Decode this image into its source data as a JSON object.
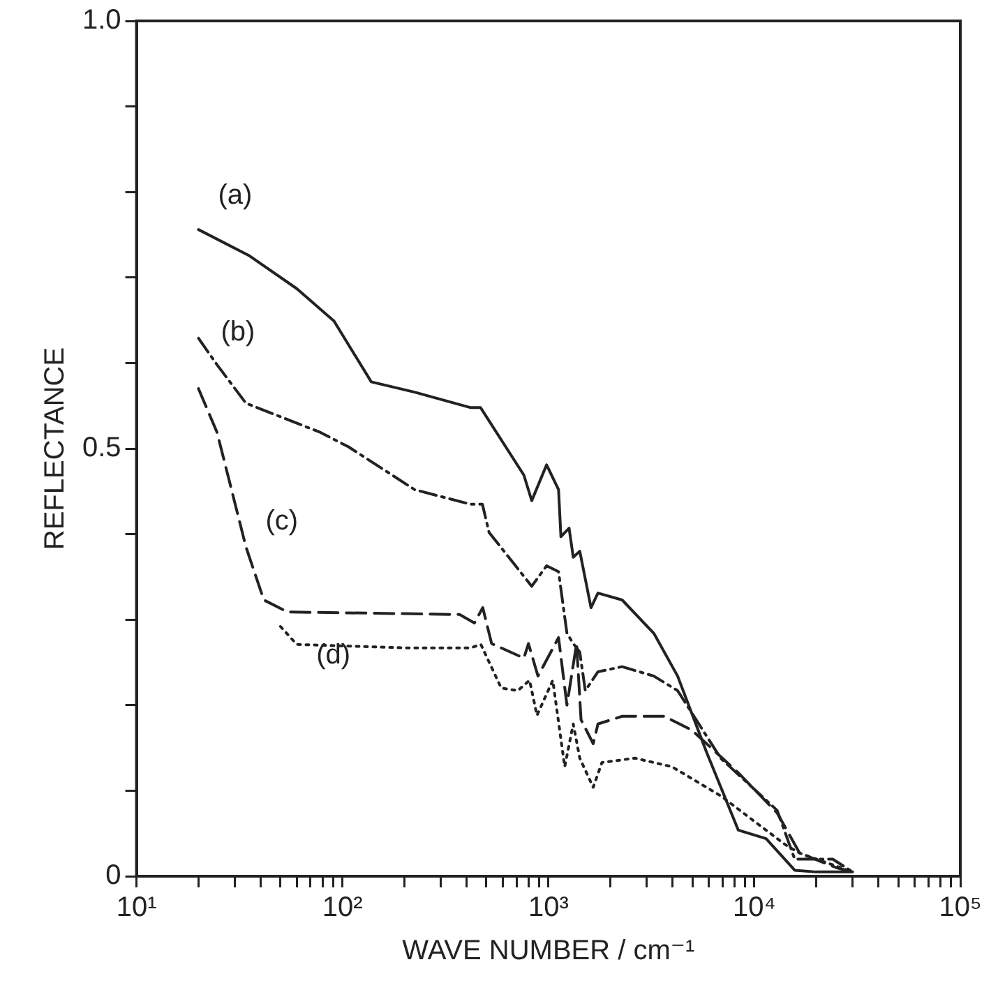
{
  "chart_data": {
    "type": "line",
    "xlabel": "WAVE NUMBER / cm⁻¹",
    "ylabel": "REFLECTANCE",
    "log": "x",
    "grid": false,
    "legend": false,
    "marker": "none",
    "xlim": [
      10,
      100000
    ],
    "ylim": [
      0,
      1
    ],
    "xticks": [
      {
        "value": 10,
        "label": "10¹"
      },
      {
        "value": 20,
        "label": null
      },
      {
        "value": 30,
        "label": null
      },
      {
        "value": 40,
        "label": null
      },
      {
        "value": 50,
        "label": null
      },
      {
        "value": 60,
        "label": null
      },
      {
        "value": 70,
        "label": null
      },
      {
        "value": 80,
        "label": null
      },
      {
        "value": 90,
        "label": null
      },
      {
        "value": 100,
        "label": "10²"
      },
      {
        "value": 200,
        "label": null
      },
      {
        "value": 300,
        "label": null
      },
      {
        "value": 400,
        "label": null
      },
      {
        "value": 500,
        "label": null
      },
      {
        "value": 600,
        "label": null
      },
      {
        "value": 700,
        "label": null
      },
      {
        "value": 800,
        "label": null
      },
      {
        "value": 900,
        "label": null
      },
      {
        "value": 1000,
        "label": "10³"
      },
      {
        "value": 2000,
        "label": null
      },
      {
        "value": 3000,
        "label": null
      },
      {
        "value": 4000,
        "label": null
      },
      {
        "value": 5000,
        "label": null
      },
      {
        "value": 6000,
        "label": null
      },
      {
        "value": 7000,
        "label": null
      },
      {
        "value": 8000,
        "label": null
      },
      {
        "value": 9000,
        "label": null
      },
      {
        "value": 10000,
        "label": "10⁴"
      },
      {
        "value": 20000,
        "label": null
      },
      {
        "value": 30000,
        "label": null
      },
      {
        "value": 40000,
        "label": null
      },
      {
        "value": 50000,
        "label": null
      },
      {
        "value": 60000,
        "label": null
      },
      {
        "value": 70000,
        "label": null
      },
      {
        "value": 80000,
        "label": null
      },
      {
        "value": 90000,
        "label": null
      },
      {
        "value": 100000,
        "label": "10⁵"
      }
    ],
    "yticks": [
      0,
      {
        "value": 0.1,
        "label": null
      },
      {
        "value": 0.2,
        "label": null
      },
      {
        "value": 0.3,
        "label": null
      },
      {
        "value": 0.4,
        "label": null
      },
      0.5,
      {
        "value": 0.6,
        "label": null
      },
      {
        "value": 0.7,
        "label": null
      },
      {
        "value": 0.8,
        "label": null
      },
      {
        "value": 0.9,
        "label": null
      },
      {
        "value": 1,
        "label": "1.0"
      }
    ],
    "series": [
      {
        "name": "(a)",
        "color": "#222222",
        "line_style": "solid",
        "x": [
          20,
          35,
          60,
          91,
          138,
          224,
          417,
          468,
          760,
          830,
          980,
          1120,
          1150,
          1260,
          1320,
          1420,
          1610,
          1740,
          2280,
          3250,
          4240,
          5860,
          8350,
          11400,
          15700,
          20000,
          30000
        ],
        "values": [
          0.756,
          0.726,
          0.687,
          0.649,
          0.578,
          0.566,
          0.548,
          0.548,
          0.469,
          0.439,
          0.481,
          0.452,
          0.397,
          0.407,
          0.373,
          0.38,
          0.314,
          0.331,
          0.323,
          0.284,
          0.234,
          0.145,
          0.054,
          0.044,
          0.007,
          0.005,
          0.005
        ]
      },
      {
        "name": "(b)",
        "color": "#222222",
        "line_style": "dashdot",
        "x": [
          20,
          24.6,
          34,
          78,
          107,
          224,
          417,
          478,
          515,
          830,
          980,
          1120,
          1230,
          1320,
          1420,
          1510,
          1740,
          2280,
          3250,
          4240,
          6860,
          12900,
          15700,
          24000,
          30000
        ],
        "values": [
          0.629,
          0.598,
          0.553,
          0.519,
          0.502,
          0.452,
          0.435,
          0.435,
          0.402,
          0.339,
          0.363,
          0.356,
          0.284,
          0.272,
          0.262,
          0.217,
          0.239,
          0.245,
          0.234,
          0.217,
          0.138,
          0.077,
          0.02,
          0.02,
          0.005
        ]
      },
      {
        "name": "(c)",
        "color": "#222222",
        "line_style": "dashed",
        "x": [
          20,
          24.6,
          34,
          41.5,
          54,
          370,
          437,
          480,
          530,
          760,
          800,
          890,
          1120,
          1230,
          1370,
          1440,
          1650,
          1740,
          2280,
          3650,
          4960,
          8350,
          12900,
          16600,
          25000,
          30000
        ],
        "values": [
          0.57,
          0.519,
          0.385,
          0.323,
          0.309,
          0.306,
          0.296,
          0.314,
          0.272,
          0.255,
          0.272,
          0.234,
          0.279,
          0.2,
          0.272,
          0.183,
          0.155,
          0.178,
          0.187,
          0.187,
          0.171,
          0.121,
          0.074,
          0.027,
          0.01,
          0.005
        ]
      },
      {
        "name": "(d)",
        "color": "#222222",
        "line_style": "dotted",
        "x": [
          50,
          60,
          200,
          420,
          470,
          590,
          710,
          810,
          880,
          1050,
          1200,
          1320,
          1420,
          1650,
          1820,
          2630,
          3980,
          6860,
          14100,
          16600,
          30000
        ],
        "values": [
          0.292,
          0.271,
          0.267,
          0.267,
          0.271,
          0.22,
          0.217,
          0.229,
          0.188,
          0.229,
          0.128,
          0.178,
          0.138,
          0.104,
          0.133,
          0.138,
          0.128,
          0.094,
          0.037,
          0.027,
          0.005
        ]
      }
    ]
  }
}
